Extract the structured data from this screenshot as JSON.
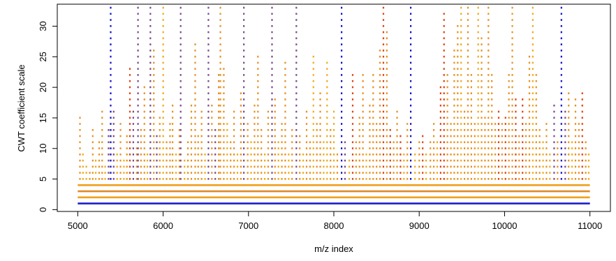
{
  "chart_data": {
    "type": "scatter",
    "title": "",
    "xlabel": "m/z index",
    "ylabel": "CWT coefficient scale",
    "xlim": [
      4760,
      11240
    ],
    "ylim": [
      -0.3,
      33.6
    ],
    "xticks": [
      5000,
      6000,
      7000,
      8000,
      9000,
      10000,
      11000
    ],
    "yticks": [
      0,
      5,
      10,
      15,
      20,
      25,
      30
    ],
    "grid": false,
    "legend": "none",
    "x_range": [
      5000,
      11000
    ],
    "max_scale": 33,
    "base_scales": {
      "1": "#1e1ec8",
      "2": "#f0a01e",
      "3": "#e08a28",
      "4": "#f0a01e"
    },
    "colors": {
      "blue": "#1010d0",
      "purple": "#7a4a8c",
      "orange": "#e8901e",
      "gold": "#f0aa14",
      "red": "#e04010"
    },
    "ridges": [
      {
        "x": 5025,
        "h": 15,
        "c": "orange"
      },
      {
        "x": 5060,
        "h": 9,
        "c": "gold"
      },
      {
        "x": 5100,
        "h": 7,
        "c": "gold"
      },
      {
        "x": 5140,
        "h": 6,
        "c": "orange"
      },
      {
        "x": 5175,
        "h": 13,
        "c": "orange"
      },
      {
        "x": 5210,
        "h": 8,
        "c": "gold"
      },
      {
        "x": 5250,
        "h": 11,
        "c": "orange"
      },
      {
        "x": 5285,
        "h": 16,
        "c": "orange"
      },
      {
        "x": 5320,
        "h": 7,
        "c": "gold"
      },
      {
        "x": 5360,
        "h": 13,
        "c": "purple"
      },
      {
        "x": 5385,
        "h": 33,
        "c": "blue"
      },
      {
        "x": 5420,
        "h": 16,
        "c": "purple"
      },
      {
        "x": 5460,
        "h": 9,
        "c": "gold"
      },
      {
        "x": 5500,
        "h": 14,
        "c": "orange"
      },
      {
        "x": 5540,
        "h": 8,
        "c": "gold"
      },
      {
        "x": 5575,
        "h": 12,
        "c": "orange"
      },
      {
        "x": 5610,
        "h": 23,
        "c": "red"
      },
      {
        "x": 5650,
        "h": 16,
        "c": "purple"
      },
      {
        "x": 5690,
        "h": 10,
        "c": "orange"
      },
      {
        "x": 5705,
        "h": 33,
        "c": "purple"
      },
      {
        "x": 5740,
        "h": 13,
        "c": "orange"
      },
      {
        "x": 5780,
        "h": 20,
        "c": "orange"
      },
      {
        "x": 5815,
        "h": 9,
        "c": "gold"
      },
      {
        "x": 5850,
        "h": 33,
        "c": "purple"
      },
      {
        "x": 5890,
        "h": 26,
        "c": "orange"
      },
      {
        "x": 5925,
        "h": 12,
        "c": "purple"
      },
      {
        "x": 5960,
        "h": 15,
        "c": "orange"
      },
      {
        "x": 6000,
        "h": 33,
        "c": "gold"
      },
      {
        "x": 6040,
        "h": 11,
        "c": "orange"
      },
      {
        "x": 6080,
        "h": 14,
        "c": "orange"
      },
      {
        "x": 6110,
        "h": 17,
        "c": "orange"
      },
      {
        "x": 6150,
        "h": 9,
        "c": "gold"
      },
      {
        "x": 6190,
        "h": 13,
        "c": "orange"
      },
      {
        "x": 6205,
        "h": 33,
        "c": "purple"
      },
      {
        "x": 6250,
        "h": 8,
        "c": "gold"
      },
      {
        "x": 6290,
        "h": 11,
        "c": "orange"
      },
      {
        "x": 6330,
        "h": 17,
        "c": "orange"
      },
      {
        "x": 6375,
        "h": 27,
        "c": "orange"
      },
      {
        "x": 6410,
        "h": 12,
        "c": "orange"
      },
      {
        "x": 6450,
        "h": 16,
        "c": "orange"
      },
      {
        "x": 6490,
        "h": 9,
        "c": "gold"
      },
      {
        "x": 6530,
        "h": 33,
        "c": "purple"
      },
      {
        "x": 6570,
        "h": 17,
        "c": "orange"
      },
      {
        "x": 6610,
        "h": 13,
        "c": "purple"
      },
      {
        "x": 6650,
        "h": 22,
        "c": "orange"
      },
      {
        "x": 6670,
        "h": 33,
        "c": "orange"
      },
      {
        "x": 6710,
        "h": 23,
        "c": "orange"
      },
      {
        "x": 6750,
        "h": 14,
        "c": "gold"
      },
      {
        "x": 6790,
        "h": 11,
        "c": "orange"
      },
      {
        "x": 6830,
        "h": 16,
        "c": "orange"
      },
      {
        "x": 6870,
        "h": 9,
        "c": "gold"
      },
      {
        "x": 6910,
        "h": 19,
        "c": "orange"
      },
      {
        "x": 6945,
        "h": 33,
        "c": "purple"
      },
      {
        "x": 6990,
        "h": 14,
        "c": "orange"
      },
      {
        "x": 7030,
        "h": 11,
        "c": "gold"
      },
      {
        "x": 7070,
        "h": 17,
        "c": "orange"
      },
      {
        "x": 7110,
        "h": 25,
        "c": "orange"
      },
      {
        "x": 7150,
        "h": 13,
        "c": "orange"
      },
      {
        "x": 7190,
        "h": 9,
        "c": "gold"
      },
      {
        "x": 7230,
        "h": 16,
        "c": "orange"
      },
      {
        "x": 7275,
        "h": 33,
        "c": "purple"
      },
      {
        "x": 7310,
        "h": 18,
        "c": "orange"
      },
      {
        "x": 7350,
        "h": 11,
        "c": "gold"
      },
      {
        "x": 7390,
        "h": 14,
        "c": "orange"
      },
      {
        "x": 7430,
        "h": 24,
        "c": "orange"
      },
      {
        "x": 7470,
        "h": 9,
        "c": "gold"
      },
      {
        "x": 7510,
        "h": 13,
        "c": "orange"
      },
      {
        "x": 7560,
        "h": 33,
        "c": "purple"
      },
      {
        "x": 7600,
        "h": 12,
        "c": "orange"
      },
      {
        "x": 7640,
        "h": 9,
        "c": "gold"
      },
      {
        "x": 7680,
        "h": 16,
        "c": "orange"
      },
      {
        "x": 7720,
        "h": 11,
        "c": "orange"
      },
      {
        "x": 7760,
        "h": 25,
        "c": "gold"
      },
      {
        "x": 7800,
        "h": 14,
        "c": "orange"
      },
      {
        "x": 7840,
        "h": 19,
        "c": "orange"
      },
      {
        "x": 7880,
        "h": 11,
        "c": "gold"
      },
      {
        "x": 7920,
        "h": 24,
        "c": "gold"
      },
      {
        "x": 7960,
        "h": 13,
        "c": "orange"
      },
      {
        "x": 8000,
        "h": 16,
        "c": "gold"
      },
      {
        "x": 8040,
        "h": 9,
        "c": "orange"
      },
      {
        "x": 8090,
        "h": 33,
        "c": "blue"
      },
      {
        "x": 8130,
        "h": 11,
        "c": "purple"
      },
      {
        "x": 8180,
        "h": 8,
        "c": "gold"
      },
      {
        "x": 8220,
        "h": 22,
        "c": "red"
      },
      {
        "x": 8260,
        "h": 11,
        "c": "orange"
      },
      {
        "x": 8300,
        "h": 15,
        "c": "orange"
      },
      {
        "x": 8340,
        "h": 22,
        "c": "orange"
      },
      {
        "x": 8380,
        "h": 9,
        "c": "gold"
      },
      {
        "x": 8420,
        "h": 17,
        "c": "orange"
      },
      {
        "x": 8460,
        "h": 22,
        "c": "orange"
      },
      {
        "x": 8500,
        "h": 14,
        "c": "orange"
      },
      {
        "x": 8540,
        "h": 26,
        "c": "orange"
      },
      {
        "x": 8580,
        "h": 33,
        "c": "red"
      },
      {
        "x": 8620,
        "h": 29,
        "c": "orange"
      },
      {
        "x": 8660,
        "h": 13,
        "c": "red"
      },
      {
        "x": 8700,
        "h": 11,
        "c": "orange"
      },
      {
        "x": 8740,
        "h": 16,
        "c": "orange"
      },
      {
        "x": 8780,
        "h": 12,
        "c": "red"
      },
      {
        "x": 8820,
        "h": 9,
        "c": "gold"
      },
      {
        "x": 8860,
        "h": 14,
        "c": "orange"
      },
      {
        "x": 8900,
        "h": 33,
        "c": "blue"
      },
      {
        "x": 8950,
        "h": 9,
        "c": "gold"
      },
      {
        "x": 9000,
        "h": 11,
        "c": "orange"
      },
      {
        "x": 9040,
        "h": 12,
        "c": "red"
      },
      {
        "x": 9080,
        "h": 9,
        "c": "gold"
      },
      {
        "x": 9130,
        "h": 11,
        "c": "orange"
      },
      {
        "x": 9170,
        "h": 14,
        "c": "orange"
      },
      {
        "x": 9210,
        "h": 11,
        "c": "gold"
      },
      {
        "x": 9250,
        "h": 20,
        "c": "red"
      },
      {
        "x": 9290,
        "h": 32,
        "c": "red"
      },
      {
        "x": 9330,
        "h": 22,
        "c": "orange"
      },
      {
        "x": 9370,
        "h": 14,
        "c": "orange"
      },
      {
        "x": 9410,
        "h": 26,
        "c": "orange"
      },
      {
        "x": 9450,
        "h": 30,
        "c": "orange"
      },
      {
        "x": 9490,
        "h": 33,
        "c": "gold"
      },
      {
        "x": 9530,
        "h": 16,
        "c": "orange"
      },
      {
        "x": 9570,
        "h": 33,
        "c": "orange"
      },
      {
        "x": 9610,
        "h": 22,
        "c": "orange"
      },
      {
        "x": 9650,
        "h": 14,
        "c": "orange"
      },
      {
        "x": 9690,
        "h": 33,
        "c": "gold"
      },
      {
        "x": 9730,
        "h": 28,
        "c": "orange"
      },
      {
        "x": 9770,
        "h": 15,
        "c": "orange"
      },
      {
        "x": 9810,
        "h": 33,
        "c": "orange"
      },
      {
        "x": 9850,
        "h": 22,
        "c": "orange"
      },
      {
        "x": 9890,
        "h": 14,
        "c": "orange"
      },
      {
        "x": 9930,
        "h": 16,
        "c": "red"
      },
      {
        "x": 9970,
        "h": 14,
        "c": "orange"
      },
      {
        "x": 10010,
        "h": 15,
        "c": "red"
      },
      {
        "x": 10050,
        "h": 22,
        "c": "orange"
      },
      {
        "x": 10090,
        "h": 33,
        "c": "orange"
      },
      {
        "x": 10130,
        "h": 18,
        "c": "red"
      },
      {
        "x": 10170,
        "h": 12,
        "c": "orange"
      },
      {
        "x": 10210,
        "h": 18,
        "c": "red"
      },
      {
        "x": 10250,
        "h": 14,
        "c": "orange"
      },
      {
        "x": 10290,
        "h": 25,
        "c": "orange"
      },
      {
        "x": 10330,
        "h": 33,
        "c": "gold"
      },
      {
        "x": 10370,
        "h": 22,
        "c": "orange"
      },
      {
        "x": 10410,
        "h": 13,
        "c": "orange"
      },
      {
        "x": 10450,
        "h": 11,
        "c": "gold"
      },
      {
        "x": 10490,
        "h": 14,
        "c": "orange"
      },
      {
        "x": 10530,
        "h": 9,
        "c": "gold"
      },
      {
        "x": 10580,
        "h": 17,
        "c": "purple"
      },
      {
        "x": 10620,
        "h": 11,
        "c": "orange"
      },
      {
        "x": 10665,
        "h": 33,
        "c": "blue"
      },
      {
        "x": 10710,
        "h": 16,
        "c": "purple"
      },
      {
        "x": 10750,
        "h": 19,
        "c": "orange"
      },
      {
        "x": 10790,
        "h": 11,
        "c": "gold"
      },
      {
        "x": 10830,
        "h": 18,
        "c": "orange"
      },
      {
        "x": 10870,
        "h": 14,
        "c": "orange"
      },
      {
        "x": 10910,
        "h": 19,
        "c": "red"
      },
      {
        "x": 10950,
        "h": 11,
        "c": "orange"
      },
      {
        "x": 10985,
        "h": 9,
        "c": "gold"
      }
    ]
  }
}
